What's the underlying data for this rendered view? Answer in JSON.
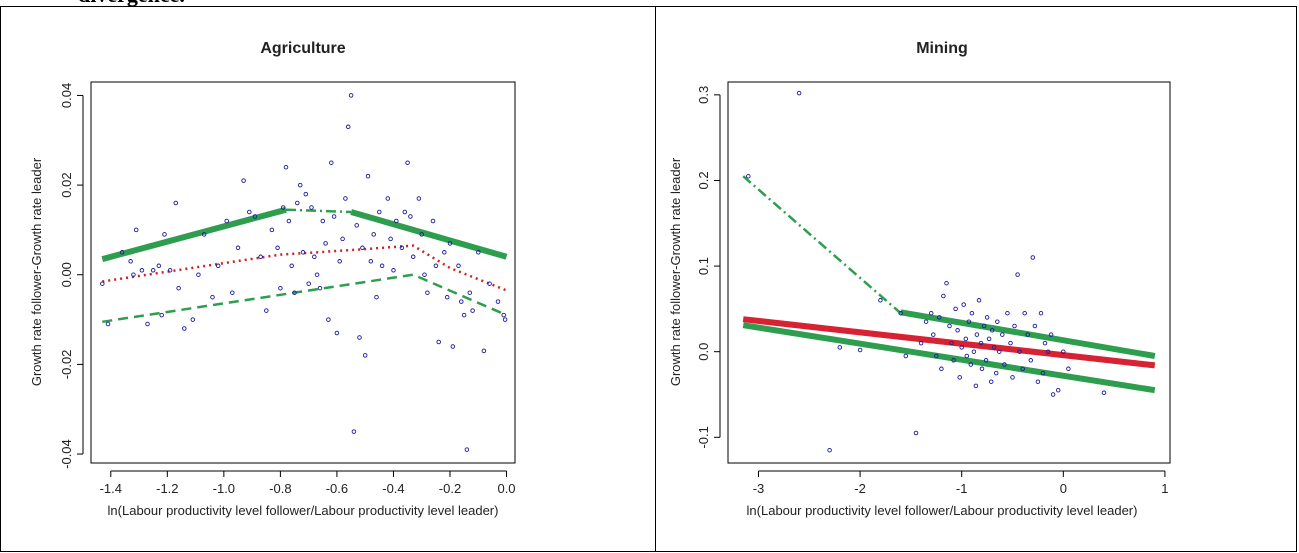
{
  "caption": "divergence.",
  "chart_data": [
    {
      "type": "scatter",
      "title": "Agriculture",
      "xlabel": "ln(Labour productivity level follower/Labour productivity level leader)",
      "ylabel": "Growth rate follower-Growth rate leader",
      "xlim": [
        -1.47,
        0.03
      ],
      "ylim": [
        -0.042,
        0.043
      ],
      "xticks": [
        -1.4,
        -1.2,
        -1.0,
        -0.8,
        -0.6,
        -0.4,
        -0.2,
        0.0
      ],
      "xtick_labels": [
        "-1.4",
        "-1.2",
        "-1.0",
        "-0.8",
        "-0.6",
        "-0.4",
        "-0.2",
        "0.0"
      ],
      "yticks": [
        -0.04,
        -0.02,
        0.0,
        0.02,
        0.04
      ],
      "ytick_labels": [
        "-0.04",
        "-0.02",
        "0.00",
        "0.02",
        "0.04"
      ],
      "point_color": "#1a1aa0",
      "points": [
        [
          -1.43,
          -0.002
        ],
        [
          -1.41,
          -0.011
        ],
        [
          -1.36,
          0.005
        ],
        [
          -1.33,
          0.003
        ],
        [
          -1.32,
          0.0
        ],
        [
          -1.31,
          0.01
        ],
        [
          -1.29,
          0.001
        ],
        [
          -1.27,
          -0.011
        ],
        [
          -1.25,
          0.001
        ],
        [
          -1.23,
          0.002
        ],
        [
          -1.22,
          -0.009
        ],
        [
          -1.21,
          0.009
        ],
        [
          -1.19,
          0.001
        ],
        [
          -1.17,
          0.016
        ],
        [
          -1.16,
          -0.003
        ],
        [
          -1.14,
          -0.012
        ],
        [
          -1.11,
          -0.01
        ],
        [
          -1.09,
          0.0
        ],
        [
          -1.07,
          0.009
        ],
        [
          -1.04,
          -0.005
        ],
        [
          -1.02,
          0.002
        ],
        [
          -0.99,
          0.012
        ],
        [
          -0.97,
          -0.004
        ],
        [
          -0.95,
          0.006
        ],
        [
          -0.93,
          0.021
        ],
        [
          -0.91,
          0.014
        ],
        [
          -0.89,
          0.013
        ],
        [
          -0.87,
          0.004
        ],
        [
          -0.85,
          -0.008
        ],
        [
          -0.83,
          0.01
        ],
        [
          -0.81,
          0.006
        ],
        [
          -0.8,
          -0.003
        ],
        [
          -0.79,
          0.015
        ],
        [
          -0.78,
          0.024
        ],
        [
          -0.77,
          0.012
        ],
        [
          -0.76,
          0.002
        ],
        [
          -0.75,
          -0.004
        ],
        [
          -0.74,
          0.016
        ],
        [
          -0.73,
          0.02
        ],
        [
          -0.72,
          0.005
        ],
        [
          -0.71,
          0.018
        ],
        [
          -0.7,
          -0.002
        ],
        [
          -0.69,
          0.015
        ],
        [
          -0.68,
          0.004
        ],
        [
          -0.67,
          0.0
        ],
        [
          -0.66,
          -0.003
        ],
        [
          -0.65,
          0.012
        ],
        [
          -0.64,
          0.007
        ],
        [
          -0.63,
          -0.01
        ],
        [
          -0.62,
          0.025
        ],
        [
          -0.61,
          0.013
        ],
        [
          -0.6,
          -0.013
        ],
        [
          -0.59,
          0.003
        ],
        [
          -0.58,
          0.008
        ],
        [
          -0.57,
          0.017
        ],
        [
          -0.56,
          0.033
        ],
        [
          -0.55,
          0.04
        ],
        [
          -0.54,
          -0.035
        ],
        [
          -0.53,
          0.011
        ],
        [
          -0.52,
          -0.014
        ],
        [
          -0.51,
          0.006
        ],
        [
          -0.5,
          -0.018
        ],
        [
          -0.49,
          0.022
        ],
        [
          -0.48,
          0.003
        ],
        [
          -0.47,
          0.009
        ],
        [
          -0.46,
          -0.005
        ],
        [
          -0.45,
          0.014
        ],
        [
          -0.44,
          0.002
        ],
        [
          -0.42,
          0.017
        ],
        [
          -0.41,
          0.008
        ],
        [
          -0.4,
          0.001
        ],
        [
          -0.39,
          0.012
        ],
        [
          -0.37,
          0.006
        ],
        [
          -0.36,
          0.014
        ],
        [
          -0.35,
          0.025
        ],
        [
          -0.34,
          0.013
        ],
        [
          -0.33,
          0.004
        ],
        [
          -0.31,
          0.017
        ],
        [
          -0.3,
          0.009
        ],
        [
          -0.29,
          0.0
        ],
        [
          -0.28,
          -0.004
        ],
        [
          -0.26,
          0.012
        ],
        [
          -0.25,
          0.002
        ],
        [
          -0.24,
          -0.015
        ],
        [
          -0.22,
          0.005
        ],
        [
          -0.21,
          -0.005
        ],
        [
          -0.2,
          0.007
        ],
        [
          -0.19,
          -0.016
        ],
        [
          -0.17,
          0.002
        ],
        [
          -0.16,
          -0.006
        ],
        [
          -0.15,
          -0.009
        ],
        [
          -0.14,
          -0.039
        ],
        [
          -0.13,
          -0.004
        ],
        [
          -0.12,
          -0.008
        ],
        [
          -0.1,
          0.005
        ],
        [
          -0.08,
          -0.017
        ],
        [
          -0.06,
          -0.002
        ],
        [
          -0.03,
          -0.006
        ],
        [
          -0.01,
          -0.009
        ],
        [
          -0.005,
          -0.01
        ]
      ],
      "fit_lines": [
        {
          "style": "solid-thick",
          "color": "#2e9e4e",
          "points": [
            [
              -1.43,
              0.0035
            ],
            [
              -0.78,
              0.0145
            ]
          ]
        },
        {
          "style": "dashdot",
          "color": "#2e9e4e",
          "points": [
            [
              -0.78,
              0.0145
            ],
            [
              -0.55,
              0.014
            ]
          ]
        },
        {
          "style": "solid-thick",
          "color": "#2e9e4e",
          "points": [
            [
              -0.55,
              0.014
            ],
            [
              0.0,
              0.004
            ]
          ]
        },
        {
          "style": "dotted",
          "color": "#cc2222",
          "points": [
            [
              -1.43,
              -0.0015
            ],
            [
              -0.8,
              0.0045
            ],
            [
              -0.55,
              0.0055
            ],
            [
              -0.33,
              0.0065
            ],
            [
              -0.2,
              0.0015
            ],
            [
              0.0,
              -0.0035
            ]
          ]
        },
        {
          "style": "dashed",
          "color": "#2e9e4e",
          "points": [
            [
              -1.43,
              -0.0105
            ],
            [
              -0.33,
              0.0
            ],
            [
              0.0,
              -0.009
            ]
          ]
        }
      ]
    },
    {
      "type": "scatter",
      "title": "Mining",
      "xlabel": "ln(Labour productivity level follower/Labour productivity level leader)",
      "ylabel": "Growth rate follower-Growth rate leader",
      "xlim": [
        -3.3,
        1.05
      ],
      "ylim": [
        -0.13,
        0.315
      ],
      "xticks": [
        -3,
        -2,
        -1,
        0,
        1
      ],
      "xtick_labels": [
        "-3",
        "-2",
        "-1",
        "0",
        "1"
      ],
      "yticks": [
        -0.1,
        0.0,
        0.1,
        0.2,
        0.3
      ],
      "ytick_labels": [
        "-0.1",
        "0.0",
        "0.1",
        "0.2",
        "0.3"
      ],
      "point_color": "#1a1aa0",
      "points": [
        [
          -3.1,
          0.205
        ],
        [
          -2.6,
          0.302
        ],
        [
          -2.3,
          -0.115
        ],
        [
          -2.2,
          0.005
        ],
        [
          -2.0,
          0.002
        ],
        [
          -1.8,
          0.06
        ],
        [
          -1.6,
          0.045
        ],
        [
          -1.55,
          -0.005
        ],
        [
          -1.45,
          -0.095
        ],
        [
          -1.4,
          0.01
        ],
        [
          -1.35,
          0.035
        ],
        [
          -1.3,
          0.045
        ],
        [
          -1.28,
          0.02
        ],
        [
          -1.25,
          -0.005
        ],
        [
          -1.22,
          0.04
        ],
        [
          -1.2,
          -0.02
        ],
        [
          -1.18,
          0.065
        ],
        [
          -1.15,
          0.08
        ],
        [
          -1.12,
          0.03
        ],
        [
          -1.1,
          0.01
        ],
        [
          -1.08,
          -0.01
        ],
        [
          -1.06,
          0.05
        ],
        [
          -1.04,
          0.025
        ],
        [
          -1.02,
          -0.03
        ],
        [
          -1.0,
          0.005
        ],
        [
          -0.98,
          0.055
        ],
        [
          -0.96,
          0.015
        ],
        [
          -0.95,
          -0.005
        ],
        [
          -0.93,
          0.035
        ],
        [
          -0.91,
          -0.015
        ],
        [
          -0.9,
          0.045
        ],
        [
          -0.88,
          0.0
        ],
        [
          -0.86,
          -0.04
        ],
        [
          -0.85,
          0.02
        ],
        [
          -0.83,
          0.06
        ],
        [
          -0.81,
          0.01
        ],
        [
          -0.8,
          -0.02
        ],
        [
          -0.78,
          0.03
        ],
        [
          -0.76,
          -0.01
        ],
        [
          -0.75,
          0.04
        ],
        [
          -0.73,
          0.015
        ],
        [
          -0.71,
          -0.035
        ],
        [
          -0.7,
          0.025
        ],
        [
          -0.68,
          0.005
        ],
        [
          -0.66,
          -0.025
        ],
        [
          -0.65,
          0.035
        ],
        [
          -0.63,
          0.0
        ],
        [
          -0.6,
          0.02
        ],
        [
          -0.58,
          -0.015
        ],
        [
          -0.55,
          0.045
        ],
        [
          -0.52,
          0.01
        ],
        [
          -0.5,
          -0.03
        ],
        [
          -0.48,
          0.03
        ],
        [
          -0.45,
          0.09
        ],
        [
          -0.43,
          0.0
        ],
        [
          -0.4,
          -0.02
        ],
        [
          -0.38,
          0.045
        ],
        [
          -0.35,
          0.02
        ],
        [
          -0.32,
          -0.01
        ],
        [
          -0.3,
          0.11
        ],
        [
          -0.28,
          0.03
        ],
        [
          -0.25,
          -0.035
        ],
        [
          -0.22,
          0.045
        ],
        [
          -0.2,
          -0.025
        ],
        [
          -0.18,
          0.01
        ],
        [
          -0.15,
          0.0
        ],
        [
          -0.12,
          0.02
        ],
        [
          -0.1,
          -0.05
        ],
        [
          -0.05,
          -0.045
        ],
        [
          0.0,
          0.0
        ],
        [
          0.05,
          -0.02
        ],
        [
          0.4,
          -0.048
        ]
      ],
      "fit_lines": [
        {
          "style": "dashdot",
          "color": "#2e9e4e",
          "points": [
            [
              -3.15,
              0.205
            ],
            [
              -1.6,
              0.045
            ]
          ]
        },
        {
          "style": "solid-thick",
          "color": "#2e9e4e",
          "points": [
            [
              -1.6,
              0.046
            ],
            [
              0.9,
              -0.005
            ]
          ]
        },
        {
          "style": "solid-thick",
          "color": "#d62232",
          "points": [
            [
              -3.15,
              0.038
            ],
            [
              0.9,
              -0.016
            ]
          ]
        },
        {
          "style": "solid-thick",
          "color": "#2e9e4e",
          "points": [
            [
              -3.15,
              0.031
            ],
            [
              0.9,
              -0.045
            ]
          ]
        }
      ]
    }
  ]
}
